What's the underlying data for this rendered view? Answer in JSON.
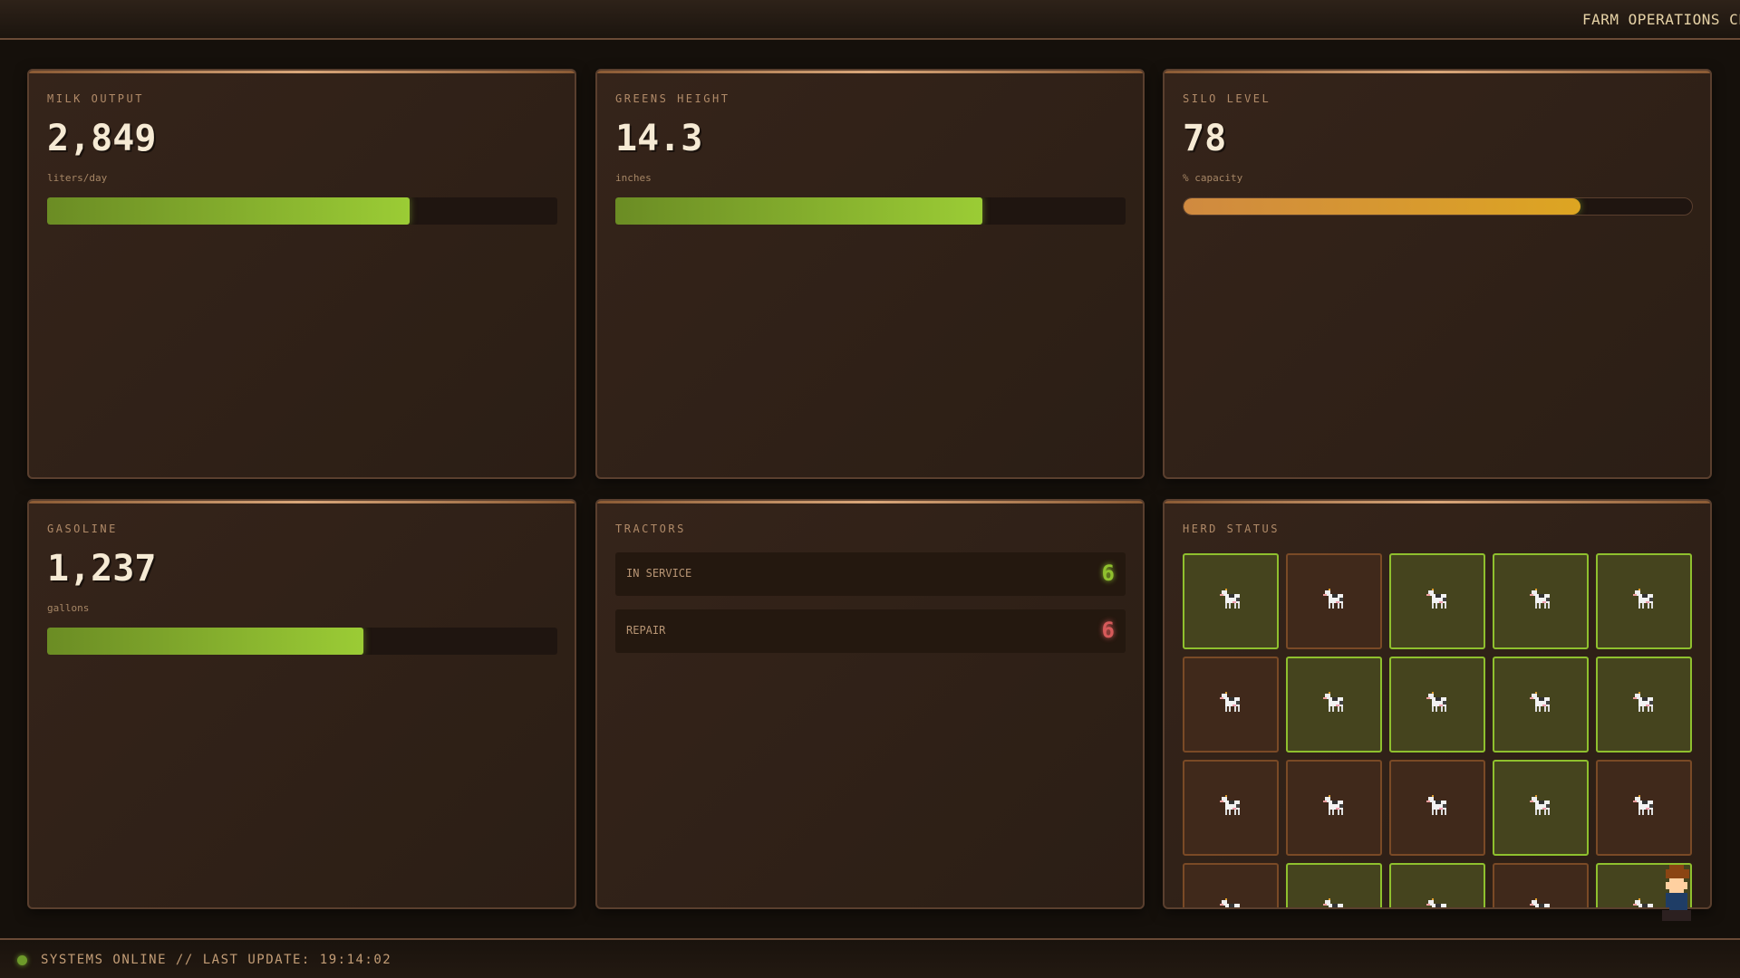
{
  "header": {
    "title": "FARM OPERATIONS CENT"
  },
  "panels": {
    "milk": {
      "label": "MILK OUTPUT",
      "value": "2,849",
      "unit": "liters/day",
      "progress_pct": 71
    },
    "greens": {
      "label": "GREENS HEIGHT",
      "value": "14.3",
      "unit": "inches",
      "progress_pct": 72
    },
    "silo": {
      "label": "SILO LEVEL",
      "value": "78",
      "unit": "% capacity",
      "progress_pct": 78
    },
    "gasoline": {
      "label": "GASOLINE",
      "value": "1,237",
      "unit": "gallons",
      "progress_pct": 62
    },
    "tractors": {
      "label": "TRACTORS",
      "rows": [
        {
          "label": "IN SERVICE",
          "value": "6",
          "color": "#8fc02e"
        },
        {
          "label": "REPAIR",
          "value": "6",
          "color": "#d65a5a"
        }
      ]
    },
    "herd": {
      "label": "HERD STATUS",
      "icon": "cow-icon",
      "statuses": [
        "ok",
        "bad",
        "ok",
        "ok",
        "ok",
        "bad",
        "ok",
        "ok",
        "ok",
        "ok",
        "bad",
        "bad",
        "bad",
        "ok",
        "bad",
        "bad",
        "ok",
        "ok",
        "bad",
        "ok"
      ]
    }
  },
  "footer": {
    "status": "SYSTEMS ONLINE // LAST UPDATE: 19:14:02",
    "indicator_color": "#6d9a2a"
  }
}
